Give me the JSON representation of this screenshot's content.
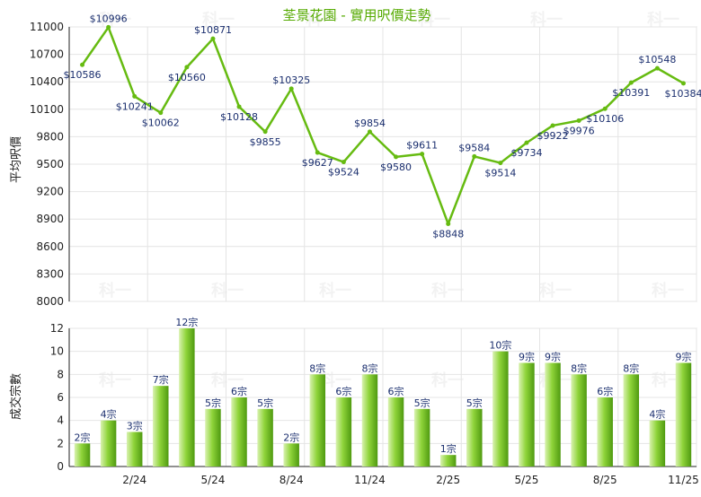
{
  "chart_data": [
    {
      "type": "line",
      "title": "荃景花園 - 實用呎價走勢",
      "ylabel": "平均呎價",
      "ylim": [
        8000,
        11000
      ],
      "yticks": [
        8000,
        8300,
        8600,
        8900,
        9200,
        9500,
        9800,
        10100,
        10400,
        10700,
        11000
      ],
      "grid": true,
      "series": [
        {
          "values": [
            10586,
            10996,
            10241,
            10062,
            10560,
            10871,
            10128,
            9855,
            10325,
            9627,
            9524,
            9854,
            9580,
            9611,
            8848,
            9584,
            9514,
            9734,
            9922,
            9976,
            10106,
            10391,
            10548,
            10384
          ],
          "labels": [
            "$10586",
            "$10996",
            "$10241",
            "$10062",
            "$10560",
            "$10871",
            "$10128",
            "$9855",
            "$10325",
            "$9627",
            "$9524",
            "$9854",
            "$9580",
            "$9611",
            "$8848",
            "$9584",
            "$9514",
            "$9734",
            "$9922",
            "$9976",
            "$10106",
            "$10391",
            "$10548",
            "$10384"
          ],
          "color": "#66bb11"
        }
      ]
    },
    {
      "type": "bar",
      "ylabel": "成交宗數",
      "ylim": [
        0,
        12
      ],
      "yticks": [
        0,
        2,
        4,
        6,
        8,
        10,
        12
      ],
      "grid": true,
      "categories": [
        "",
        "",
        "2/24",
        "",
        "",
        "5/24",
        "",
        "",
        "8/24",
        "",
        "",
        "11/24",
        "",
        "",
        "2/25",
        "",
        "",
        "5/25",
        "",
        "",
        "8/25",
        "",
        "",
        "11/25"
      ],
      "series": [
        {
          "values": [
            2,
            4,
            3,
            7,
            12,
            5,
            6,
            5,
            2,
            8,
            6,
            8,
            6,
            5,
            1,
            5,
            10,
            9,
            9,
            8,
            6,
            8,
            4,
            9
          ],
          "labels": [
            "2宗",
            "4宗",
            "3宗",
            "7宗",
            "12宗",
            "5宗",
            "6宗",
            "5宗",
            "2宗",
            "8宗",
            "6宗",
            "8宗",
            "6宗",
            "5宗",
            "1宗",
            "5宗",
            "10宗",
            "9宗",
            "9宗",
            "8宗",
            "6宗",
            "8宗",
            "4宗",
            "9宗"
          ],
          "color": "#77cc22"
        }
      ]
    }
  ],
  "watermark": "科一",
  "colors": {
    "title": "#55aa00",
    "label": "#1a2e6e",
    "axis": "#222222",
    "grid": "#e4e4e4",
    "line": "#66bb11",
    "bar_light": "#d9f2b0",
    "bar_mid": "#8fd43a",
    "bar_dark": "#4f9a10"
  }
}
